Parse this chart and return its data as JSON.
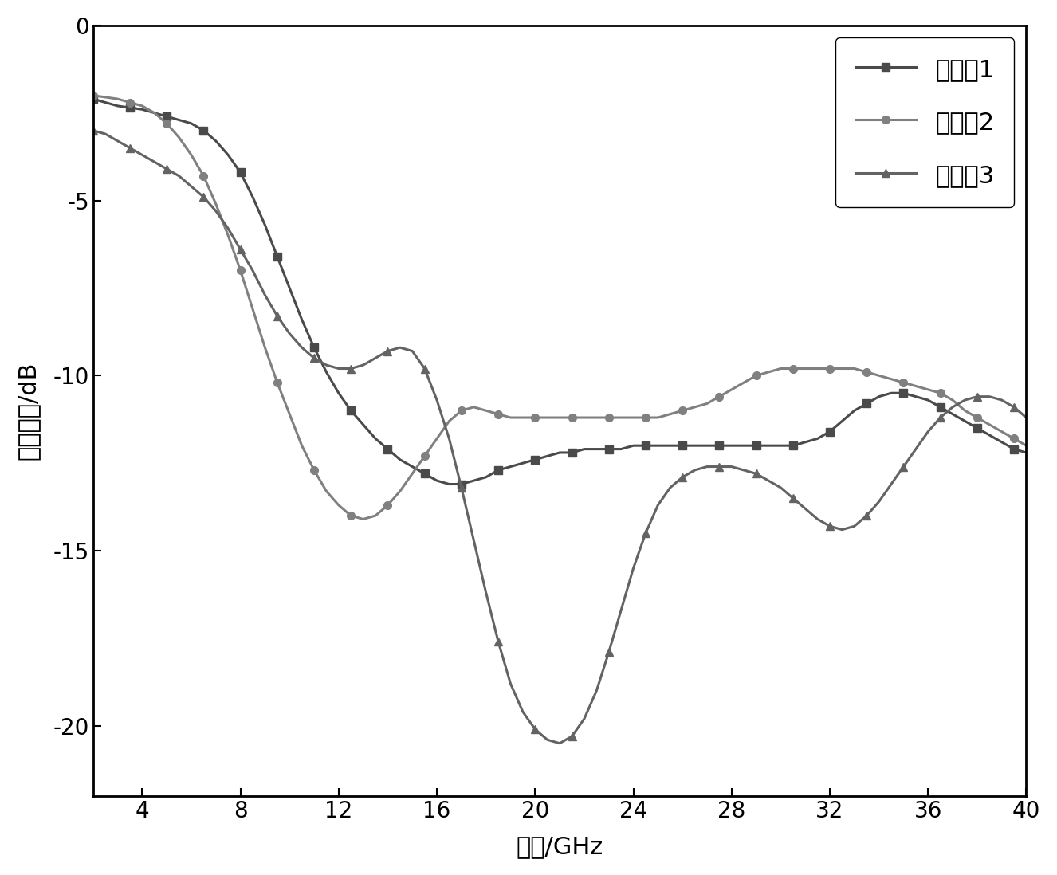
{
  "series1_label": "实施例1",
  "series2_label": "实施例2",
  "series3_label": "实施例3",
  "color1": "#4a4a4a",
  "color2": "#808080",
  "color3": "#636363",
  "xlabel": "频率/GHz",
  "ylabel": "反射损耗/dB",
  "xlim": [
    2,
    40
  ],
  "ylim": [
    -22,
    0
  ],
  "xticks": [
    4,
    8,
    12,
    16,
    20,
    24,
    28,
    32,
    36,
    40
  ],
  "yticks": [
    0,
    -5,
    -10,
    -15,
    -20
  ],
  "series1_x": [
    2.0,
    2.5,
    3.0,
    3.5,
    4.0,
    4.5,
    5.0,
    5.5,
    6.0,
    6.5,
    7.0,
    7.5,
    8.0,
    8.5,
    9.0,
    9.5,
    10.0,
    10.5,
    11.0,
    11.5,
    12.0,
    12.5,
    13.0,
    13.5,
    14.0,
    14.5,
    15.0,
    15.5,
    16.0,
    16.5,
    17.0,
    17.5,
    18.0,
    18.5,
    19.0,
    19.5,
    20.0,
    20.5,
    21.0,
    21.5,
    22.0,
    22.5,
    23.0,
    23.5,
    24.0,
    24.5,
    25.0,
    25.5,
    26.0,
    26.5,
    27.0,
    27.5,
    28.0,
    28.5,
    29.0,
    29.5,
    30.0,
    30.5,
    31.0,
    31.5,
    32.0,
    32.5,
    33.0,
    33.5,
    34.0,
    34.5,
    35.0,
    35.5,
    36.0,
    36.5,
    37.0,
    37.5,
    38.0,
    38.5,
    39.0,
    39.5,
    40.0
  ],
  "series1_y": [
    -2.1,
    -2.2,
    -2.3,
    -2.35,
    -2.4,
    -2.5,
    -2.6,
    -2.7,
    -2.8,
    -3.0,
    -3.3,
    -3.7,
    -4.2,
    -4.9,
    -5.7,
    -6.6,
    -7.5,
    -8.4,
    -9.2,
    -9.9,
    -10.5,
    -11.0,
    -11.4,
    -11.8,
    -12.1,
    -12.4,
    -12.6,
    -12.8,
    -13.0,
    -13.1,
    -13.1,
    -13.0,
    -12.9,
    -12.7,
    -12.6,
    -12.5,
    -12.4,
    -12.3,
    -12.2,
    -12.2,
    -12.1,
    -12.1,
    -12.1,
    -12.1,
    -12.0,
    -12.0,
    -12.0,
    -12.0,
    -12.0,
    -12.0,
    -12.0,
    -12.0,
    -12.0,
    -12.0,
    -12.0,
    -12.0,
    -12.0,
    -12.0,
    -11.9,
    -11.8,
    -11.6,
    -11.3,
    -11.0,
    -10.8,
    -10.6,
    -10.5,
    -10.5,
    -10.6,
    -10.7,
    -10.9,
    -11.1,
    -11.3,
    -11.5,
    -11.7,
    -11.9,
    -12.1,
    -12.2
  ],
  "series2_x": [
    2.0,
    2.5,
    3.0,
    3.5,
    4.0,
    4.5,
    5.0,
    5.5,
    6.0,
    6.5,
    7.0,
    7.5,
    8.0,
    8.5,
    9.0,
    9.5,
    10.0,
    10.5,
    11.0,
    11.5,
    12.0,
    12.5,
    13.0,
    13.5,
    14.0,
    14.5,
    15.0,
    15.5,
    16.0,
    16.5,
    17.0,
    17.5,
    18.0,
    18.5,
    19.0,
    19.5,
    20.0,
    20.5,
    21.0,
    21.5,
    22.0,
    22.5,
    23.0,
    23.5,
    24.0,
    24.5,
    25.0,
    25.5,
    26.0,
    26.5,
    27.0,
    27.5,
    28.0,
    28.5,
    29.0,
    29.5,
    30.0,
    30.5,
    31.0,
    31.5,
    32.0,
    32.5,
    33.0,
    33.5,
    34.0,
    34.5,
    35.0,
    35.5,
    36.0,
    36.5,
    37.0,
    37.5,
    38.0,
    38.5,
    39.0,
    39.5,
    40.0
  ],
  "series2_y": [
    -2.0,
    -2.05,
    -2.1,
    -2.2,
    -2.3,
    -2.5,
    -2.8,
    -3.2,
    -3.7,
    -4.3,
    -5.1,
    -6.0,
    -7.0,
    -8.1,
    -9.2,
    -10.2,
    -11.1,
    -12.0,
    -12.7,
    -13.3,
    -13.7,
    -14.0,
    -14.1,
    -14.0,
    -13.7,
    -13.3,
    -12.8,
    -12.3,
    -11.8,
    -11.3,
    -11.0,
    -10.9,
    -11.0,
    -11.1,
    -11.2,
    -11.2,
    -11.2,
    -11.2,
    -11.2,
    -11.2,
    -11.2,
    -11.2,
    -11.2,
    -11.2,
    -11.2,
    -11.2,
    -11.2,
    -11.1,
    -11.0,
    -10.9,
    -10.8,
    -10.6,
    -10.4,
    -10.2,
    -10.0,
    -9.9,
    -9.8,
    -9.8,
    -9.8,
    -9.8,
    -9.8,
    -9.8,
    -9.8,
    -9.9,
    -10.0,
    -10.1,
    -10.2,
    -10.3,
    -10.4,
    -10.5,
    -10.7,
    -11.0,
    -11.2,
    -11.4,
    -11.6,
    -11.8,
    -12.0
  ],
  "series3_x": [
    2.0,
    2.5,
    3.0,
    3.5,
    4.0,
    4.5,
    5.0,
    5.5,
    6.0,
    6.5,
    7.0,
    7.5,
    8.0,
    8.5,
    9.0,
    9.5,
    10.0,
    10.5,
    11.0,
    11.5,
    12.0,
    12.5,
    13.0,
    13.5,
    14.0,
    14.5,
    15.0,
    15.5,
    16.0,
    16.5,
    17.0,
    17.5,
    18.0,
    18.5,
    19.0,
    19.5,
    20.0,
    20.5,
    21.0,
    21.5,
    22.0,
    22.5,
    23.0,
    23.5,
    24.0,
    24.5,
    25.0,
    25.5,
    26.0,
    26.5,
    27.0,
    27.5,
    28.0,
    28.5,
    29.0,
    29.5,
    30.0,
    30.5,
    31.0,
    31.5,
    32.0,
    32.5,
    33.0,
    33.5,
    34.0,
    34.5,
    35.0,
    35.5,
    36.0,
    36.5,
    37.0,
    37.5,
    38.0,
    38.5,
    39.0,
    39.5,
    40.0
  ],
  "series3_y": [
    -3.0,
    -3.1,
    -3.3,
    -3.5,
    -3.7,
    -3.9,
    -4.1,
    -4.3,
    -4.6,
    -4.9,
    -5.3,
    -5.8,
    -6.4,
    -7.0,
    -7.7,
    -8.3,
    -8.8,
    -9.2,
    -9.5,
    -9.7,
    -9.8,
    -9.8,
    -9.7,
    -9.5,
    -9.3,
    -9.2,
    -9.3,
    -9.8,
    -10.7,
    -11.8,
    -13.2,
    -14.7,
    -16.2,
    -17.6,
    -18.8,
    -19.6,
    -20.1,
    -20.4,
    -20.5,
    -20.3,
    -19.8,
    -19.0,
    -17.9,
    -16.7,
    -15.5,
    -14.5,
    -13.7,
    -13.2,
    -12.9,
    -12.7,
    -12.6,
    -12.6,
    -12.6,
    -12.7,
    -12.8,
    -13.0,
    -13.2,
    -13.5,
    -13.8,
    -14.1,
    -14.3,
    -14.4,
    -14.3,
    -14.0,
    -13.6,
    -13.1,
    -12.6,
    -12.1,
    -11.6,
    -11.2,
    -10.9,
    -10.7,
    -10.6,
    -10.6,
    -10.7,
    -10.9,
    -11.2
  ],
  "legend_loc": "upper right",
  "marker_size": 7,
  "line_width": 2.2,
  "marker_interval": 3,
  "background_color": "#ffffff",
  "font_size_labels": 22,
  "font_size_ticks": 20,
  "font_size_legend": 22,
  "spine_linewidth": 2.0
}
